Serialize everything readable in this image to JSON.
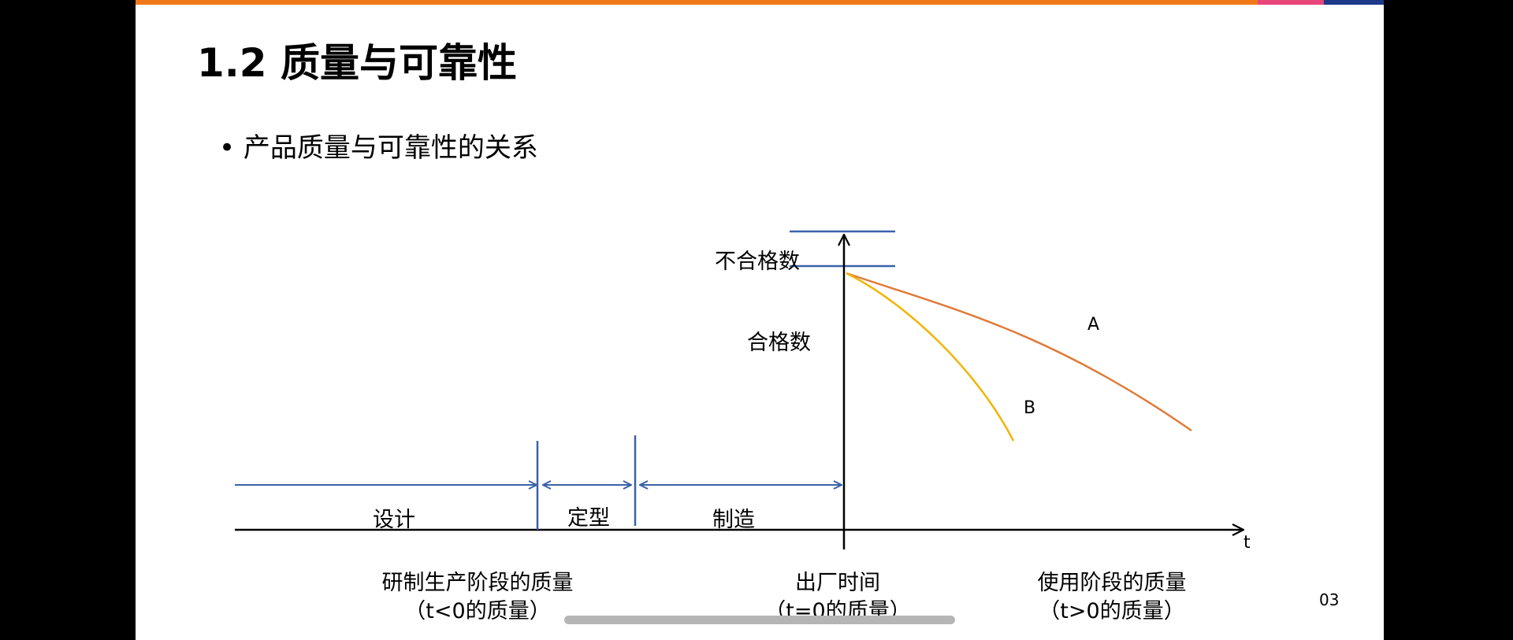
{
  "slide": {
    "title": "1.2 质量与可靠性",
    "bullet": "• 产品质量与可靠性的关系",
    "page_number": "03"
  },
  "diagram": {
    "y_labels": {
      "nonconforming": "不合格数",
      "conforming": "合格数"
    },
    "x_axis_label": "t",
    "phases": [
      "设计",
      "定型",
      "制造"
    ],
    "curves": [
      {
        "label": "A",
        "color": "#e07b39"
      },
      {
        "label": "B",
        "color": "#f2b400"
      }
    ],
    "line_color": "#3a62a8",
    "bottom_labels": [
      {
        "line1": "研制生产阶段的质量",
        "line2": "（t<0的质量）"
      },
      {
        "line1": "出厂时间",
        "line2": "（t=0的质量）"
      },
      {
        "line1": "使用阶段的质量",
        "line2": "（t>0的质量）"
      }
    ]
  },
  "colors": {
    "top_bar": "#f07a1a",
    "accent_pink": "#e8457a",
    "accent_navy": "#1d3a8a"
  }
}
